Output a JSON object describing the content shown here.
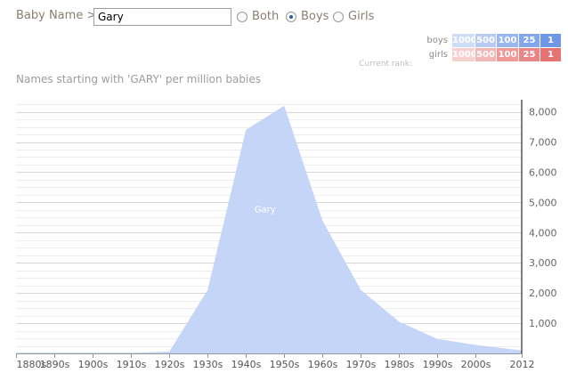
{
  "header": {
    "label": "Baby Name >",
    "input_value": "Gary",
    "radios": [
      {
        "label": "Both",
        "selected": false
      },
      {
        "label": "Boys",
        "selected": true
      },
      {
        "label": "Girls",
        "selected": false
      }
    ]
  },
  "rank_legend": {
    "boys": {
      "label": "boys",
      "cells": [
        "1000",
        "500",
        "100",
        "25",
        "1"
      ],
      "colors": [
        "#cfdcf6",
        "#b7cbf2",
        "#99b6ee",
        "#84a6ea",
        "#6f97e6"
      ]
    },
    "girls": {
      "label": "girls",
      "cells": [
        "1000",
        "500",
        "100",
        "25",
        "1"
      ],
      "colors": [
        "#f7d0d0",
        "#f3b6b6",
        "#ee9898",
        "#ea8585",
        "#e67272"
      ]
    },
    "current_rank_label": "Current rank:"
  },
  "subtitle": "Names starting with 'GARY' per million babies",
  "chart_data": {
    "type": "area",
    "series": [
      {
        "name": "Gary",
        "color": "#c4d5f8"
      }
    ],
    "categories": [
      "1880s",
      "1890s",
      "1900s",
      "1910s",
      "1920s",
      "1930s",
      "1940s",
      "1950s",
      "1960s",
      "1970s",
      "1980s",
      "1990s",
      "2000s",
      "2012"
    ],
    "x": [
      1880,
      1890,
      1900,
      1910,
      1920,
      1930,
      1940,
      1950,
      1960,
      1970,
      1980,
      1990,
      2000,
      2012
    ],
    "values": [
      20,
      20,
      20,
      20,
      60,
      2100,
      7400,
      8200,
      4400,
      2100,
      1050,
      480,
      280,
      100
    ],
    "y_ticks": [
      "1,000",
      "2,000",
      "3,000",
      "4,000",
      "5,000",
      "6,000",
      "7,000",
      "8,000"
    ],
    "ylim": [
      0,
      8400
    ],
    "grid": true
  }
}
